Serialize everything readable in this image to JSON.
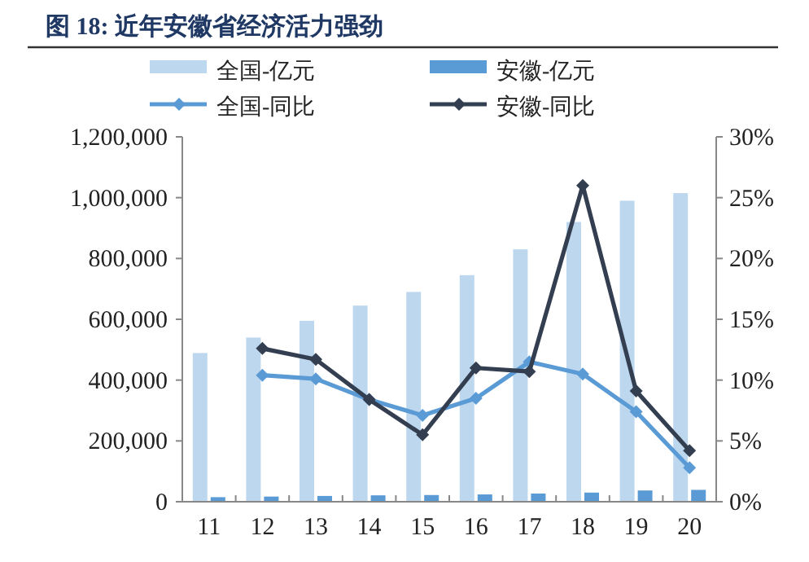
{
  "chart_data": {
    "type": "bar",
    "title": "图 18: 近年安徽省经济活力强劲",
    "categories": [
      "11",
      "12",
      "13",
      "14",
      "15",
      "16",
      "17",
      "18",
      "19",
      "20"
    ],
    "series": [
      {
        "name": "全国-亿元",
        "color": "#bdd7ee",
        "values": [
          489000,
          540000,
          595000,
          645000,
          690000,
          745000,
          830000,
          920000,
          990000,
          1015000
        ]
      },
      {
        "name": "安徽-亿元",
        "color": "#5b9bd5",
        "values": [
          15000,
          17000,
          19000,
          21000,
          22000,
          24000,
          27000,
          30000,
          37000,
          39000
        ]
      },
      {
        "name": "全国-同比",
        "type": "line",
        "axis": "y2",
        "marker": "diamond",
        "color": "#5b9bd5",
        "values": [
          null,
          10.4,
          10.1,
          8.4,
          7.1,
          8.5,
          11.5,
          10.5,
          7.4,
          2.8
        ]
      },
      {
        "name": "安徽-同比",
        "type": "line",
        "axis": "y2",
        "marker": "diamond",
        "color": "#333f50",
        "values": [
          null,
          12.6,
          11.7,
          8.4,
          5.5,
          11.0,
          10.7,
          26.0,
          9.1,
          4.2
        ]
      }
    ],
    "ylim": [
      0,
      1200000
    ],
    "yticks": [
      {
        "value": 0,
        "label": "0"
      },
      {
        "value": 200000,
        "label": "200,000"
      },
      {
        "value": 400000,
        "label": "400,000"
      },
      {
        "value": 600000,
        "label": "600,000"
      },
      {
        "value": 800000,
        "label": "800,000"
      },
      {
        "value": 1000000,
        "label": "1,000,000"
      },
      {
        "value": 1200000,
        "label": "1,200,000"
      }
    ],
    "y2lim": [
      0,
      30
    ],
    "y2ticks": [
      {
        "value": 0,
        "label": "0%"
      },
      {
        "value": 5,
        "label": "5%"
      },
      {
        "value": 10,
        "label": "10%"
      },
      {
        "value": 15,
        "label": "15%"
      },
      {
        "value": 20,
        "label": "20%"
      },
      {
        "value": 25,
        "label": "25%"
      },
      {
        "value": 30,
        "label": "30%"
      }
    ],
    "grid": false,
    "legend": "top"
  }
}
